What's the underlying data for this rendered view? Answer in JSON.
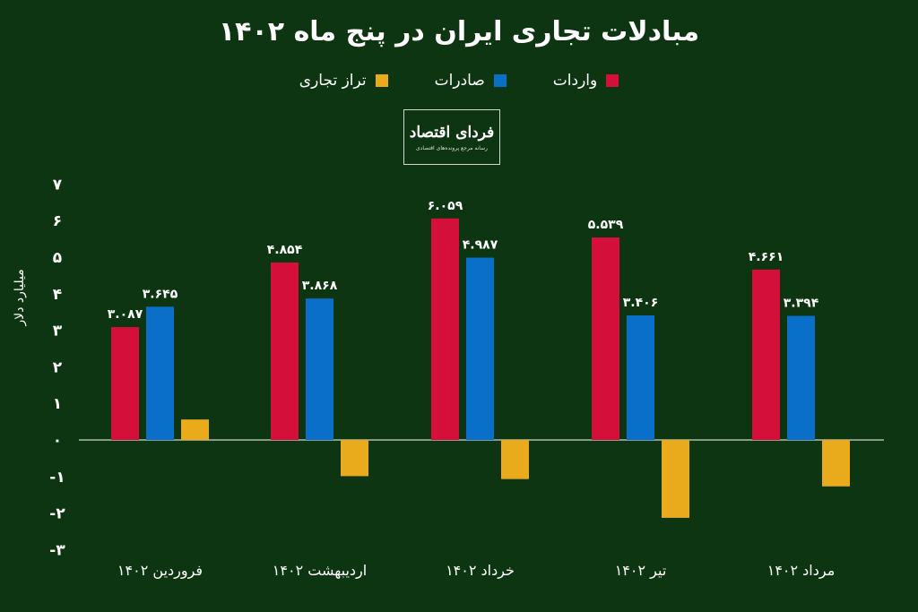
{
  "logo": {
    "text": "فردای اقتصاد",
    "tagline": "رسانه مرجع پرونده‌های اقتصادی"
  },
  "colors": {
    "background": "#0d3511",
    "imports": "#d4103a",
    "exports": "#0a6fc8",
    "balance": "#e9ab1b",
    "axis": "#ffffff"
  },
  "chart_data": {
    "type": "bar",
    "title": "مبادلات تجاری ایران در پنج ماه ۱۴۰۲",
    "ylabel": "میلیارد دلار",
    "xlabel": "",
    "ylim": [
      -3,
      7
    ],
    "yticks": [
      7,
      6,
      5,
      4,
      3,
      2,
      1,
      0,
      -1,
      -2,
      -3
    ],
    "ytick_labels": [
      "۷",
      "۶",
      "۵",
      "۴",
      "۳",
      "۲",
      "۱",
      "۰",
      "-۱",
      "-۲",
      "-۳"
    ],
    "legend_position": "top-center",
    "grid": false,
    "categories": [
      "فروردین ۱۴۰۲",
      "اردیبهشت ۱۴۰۲",
      "خرداد ۱۴۰۲",
      "تیر ۱۴۰۲",
      "مرداد ۱۴۰۲"
    ],
    "series": [
      {
        "name": "واردات",
        "color": "#d4103a",
        "values": [
          3.087,
          4.854,
          6.059,
          5.539,
          4.661
        ],
        "labels": [
          "۳.۰۸۷",
          "۴.۸۵۴",
          "۶.۰۵۹",
          "۵.۵۳۹",
          "۴.۶۶۱"
        ]
      },
      {
        "name": "صادرات",
        "color": "#0a6fc8",
        "values": [
          3.645,
          3.868,
          4.987,
          3.406,
          3.394
        ],
        "labels": [
          "۳.۶۴۵",
          "۳.۸۶۸",
          "۴.۹۸۷",
          "۳.۴۰۶",
          "۳.۳۹۴"
        ]
      },
      {
        "name": "تراز تجاری",
        "color": "#e9ab1b",
        "values": [
          0.56,
          -0.99,
          -1.07,
          -2.13,
          -1.27
        ],
        "labels": []
      }
    ]
  }
}
